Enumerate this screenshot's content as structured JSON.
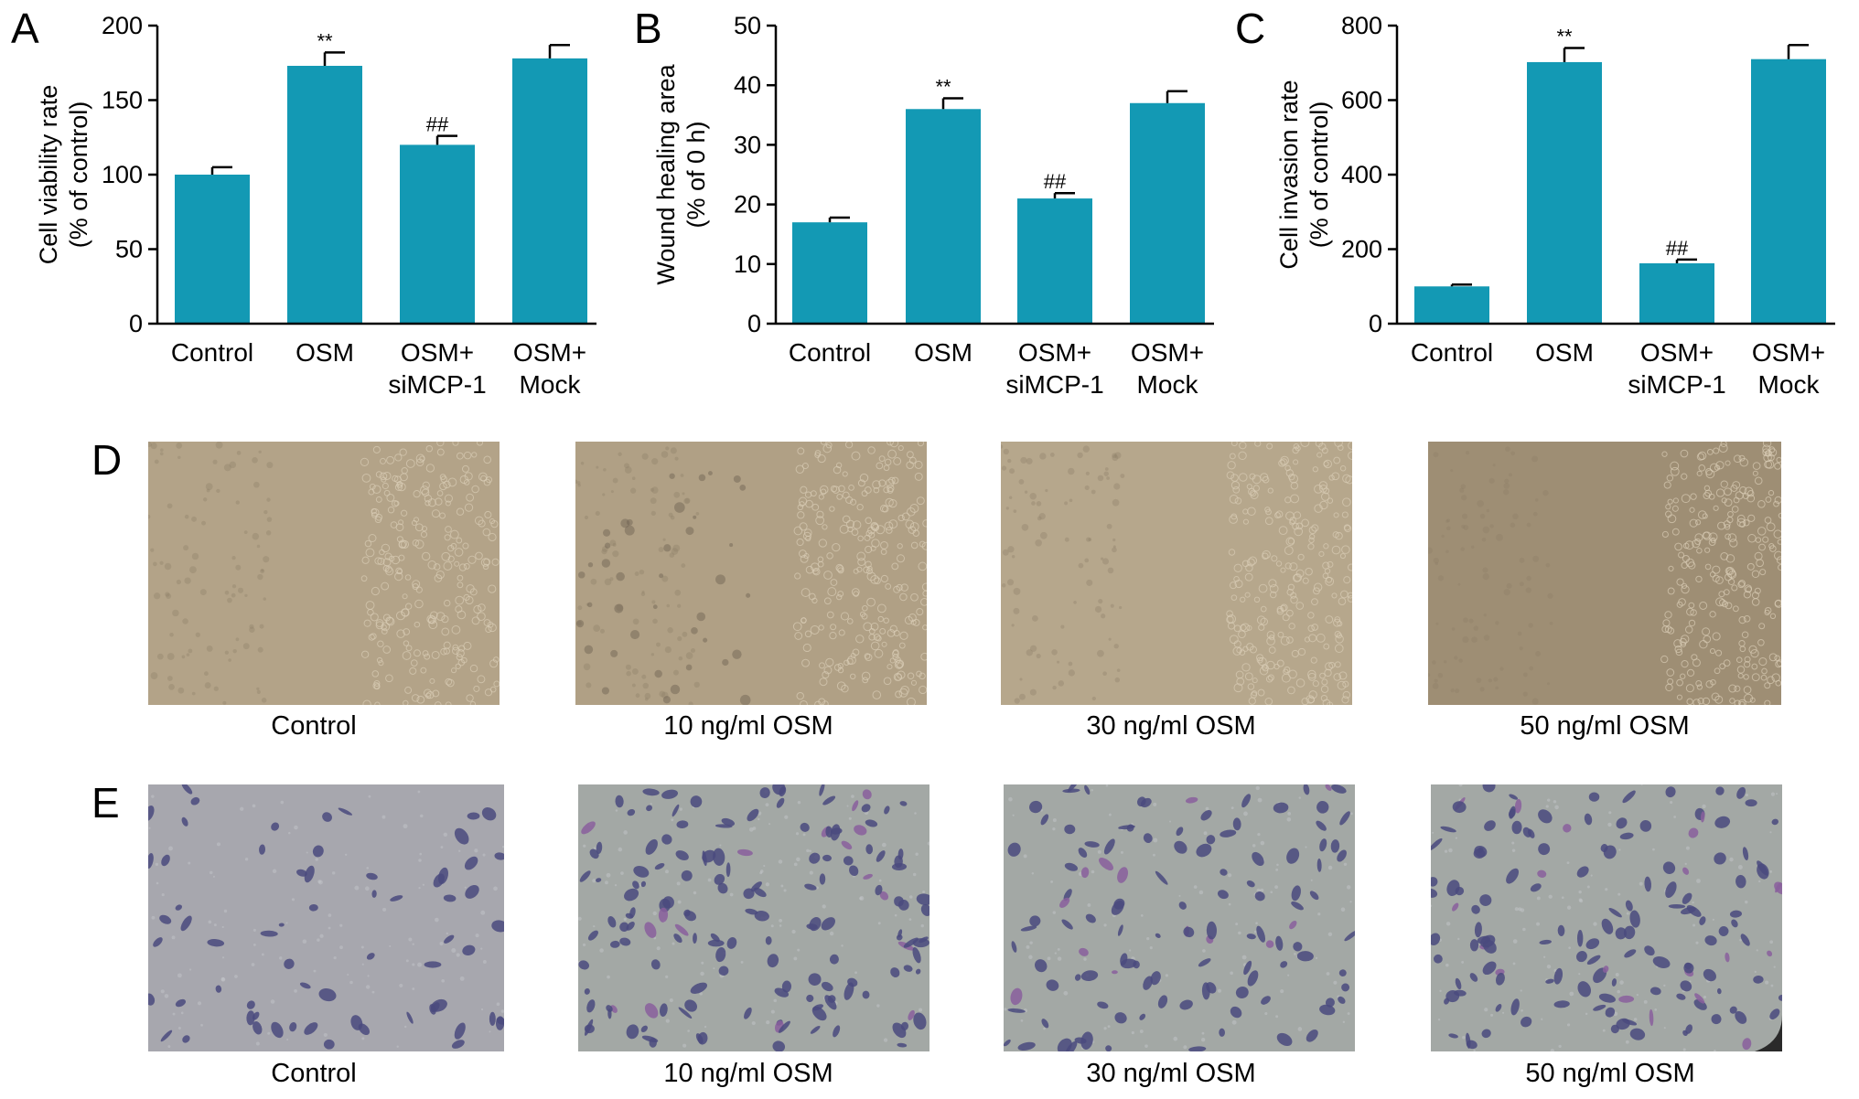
{
  "panels": {
    "A": "A",
    "B": "B",
    "C": "C",
    "D": "D",
    "E": "E"
  },
  "colors": {
    "bar": "#1399b4",
    "axis": "#000000",
    "wound_bg": "#b09f86",
    "wound_edge": "#9c8d76",
    "invasion_bg": "#a5a6af",
    "cell": "#4a4a7e"
  },
  "chart_data": [
    {
      "type": "bar",
      "categories": [
        [
          "Control"
        ],
        [
          "OSM"
        ],
        [
          "OSM+",
          "siMCP-1"
        ],
        [
          "OSM+",
          "Mock"
        ]
      ],
      "values": [
        100,
        173,
        120,
        178
      ],
      "errors": [
        5,
        9,
        6,
        9
      ],
      "annotations": [
        "",
        "**",
        "##",
        ""
      ],
      "ylabel": [
        "Cell viability rate",
        "(% of control)"
      ],
      "ylim": [
        0,
        200
      ],
      "yticks": [
        0,
        50,
        100,
        150,
        200
      ]
    },
    {
      "type": "bar",
      "categories": [
        [
          "Control"
        ],
        [
          "OSM"
        ],
        [
          "OSM+",
          "siMCP-1"
        ],
        [
          "OSM+",
          "Mock"
        ]
      ],
      "values": [
        17,
        36,
        21,
        37
      ],
      "errors": [
        0.8,
        1.8,
        0.9,
        2
      ],
      "annotations": [
        "",
        "**",
        "##",
        ""
      ],
      "ylabel": [
        "Wound healing area",
        "(% of 0 h)"
      ],
      "ylim": [
        0,
        50
      ],
      "yticks": [
        0,
        10,
        20,
        30,
        40,
        50
      ]
    },
    {
      "type": "bar",
      "categories": [
        [
          "Control"
        ],
        [
          "OSM"
        ],
        [
          "OSM+",
          "siMCP-1"
        ],
        [
          "OSM+",
          "Mock"
        ]
      ],
      "values": [
        100,
        702,
        162,
        710
      ],
      "errors": [
        5,
        38,
        10,
        38
      ],
      "annotations": [
        "",
        "**",
        "##",
        ""
      ],
      "ylabel": [
        "Cell invasion rate",
        "(% of control)"
      ],
      "ylim": [
        0,
        800
      ],
      "yticks": [
        0,
        200,
        400,
        600,
        800
      ]
    }
  ],
  "wound_images": {
    "captions": [
      "Control",
      "10 ng/ml OSM",
      "30 ng/ml OSM",
      "50 ng/ml OSM"
    ]
  },
  "invasion_images": {
    "captions": [
      "Control",
      "10 ng/ml OSM",
      "30 ng/ml OSM",
      "50 ng/ml OSM"
    ],
    "cell_density": [
      0.25,
      0.6,
      0.45,
      0.55
    ]
  }
}
